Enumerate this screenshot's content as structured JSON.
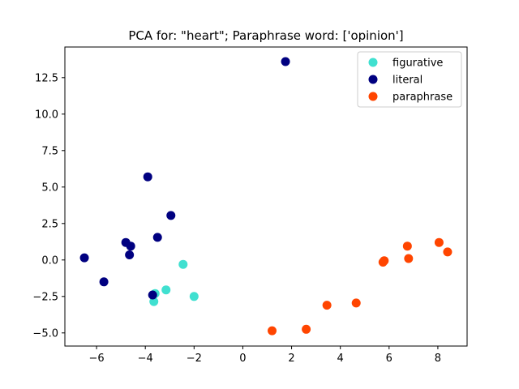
{
  "chart_data": {
    "type": "scatter",
    "title": "PCA for: \"heart\"; Paraphrase word: ['opinion']",
    "xlabel": "",
    "ylabel": "",
    "xlim": [
      -7.3,
      9.2
    ],
    "ylim": [
      -5.9,
      14.6
    ],
    "xticks": [
      -6,
      -4,
      -2,
      0,
      2,
      4,
      6,
      8
    ],
    "xtick_labels": [
      "−6",
      "−4",
      "−2",
      "0",
      "2",
      "4",
      "6",
      "8"
    ],
    "yticks": [
      -5.0,
      -2.5,
      0.0,
      2.5,
      5.0,
      7.5,
      10.0,
      12.5
    ],
    "ytick_labels": [
      "−5.0",
      "−2.5",
      "0.0",
      "2.5",
      "5.0",
      "7.5",
      "10.0",
      "12.5"
    ],
    "grid": false,
    "legend_position": "top-right",
    "series": [
      {
        "name": "figurative",
        "color": "#40E0D0",
        "points": [
          [
            -2.45,
            -0.3
          ],
          [
            -3.6,
            -2.3
          ],
          [
            -3.15,
            -2.05
          ],
          [
            -2.0,
            -2.5
          ],
          [
            -3.65,
            -2.85
          ]
        ]
      },
      {
        "name": "literal",
        "color": "#000080",
        "points": [
          [
            1.75,
            13.6
          ],
          [
            -3.9,
            5.7
          ],
          [
            -2.95,
            3.05
          ],
          [
            -3.5,
            1.55
          ],
          [
            -4.8,
            1.2
          ],
          [
            -4.6,
            0.95
          ],
          [
            -4.65,
            0.35
          ],
          [
            -6.5,
            0.15
          ],
          [
            -5.7,
            -1.5
          ],
          [
            -3.7,
            -2.4
          ]
        ]
      },
      {
        "name": "paraphrase",
        "color": "#FF4500",
        "points": [
          [
            8.05,
            1.2
          ],
          [
            8.4,
            0.55
          ],
          [
            6.75,
            0.95
          ],
          [
            6.8,
            0.1
          ],
          [
            5.8,
            -0.05
          ],
          [
            5.75,
            -0.15
          ],
          [
            4.65,
            -2.95
          ],
          [
            3.45,
            -3.1
          ],
          [
            2.6,
            -4.75
          ],
          [
            1.2,
            -4.85
          ]
        ]
      }
    ]
  }
}
